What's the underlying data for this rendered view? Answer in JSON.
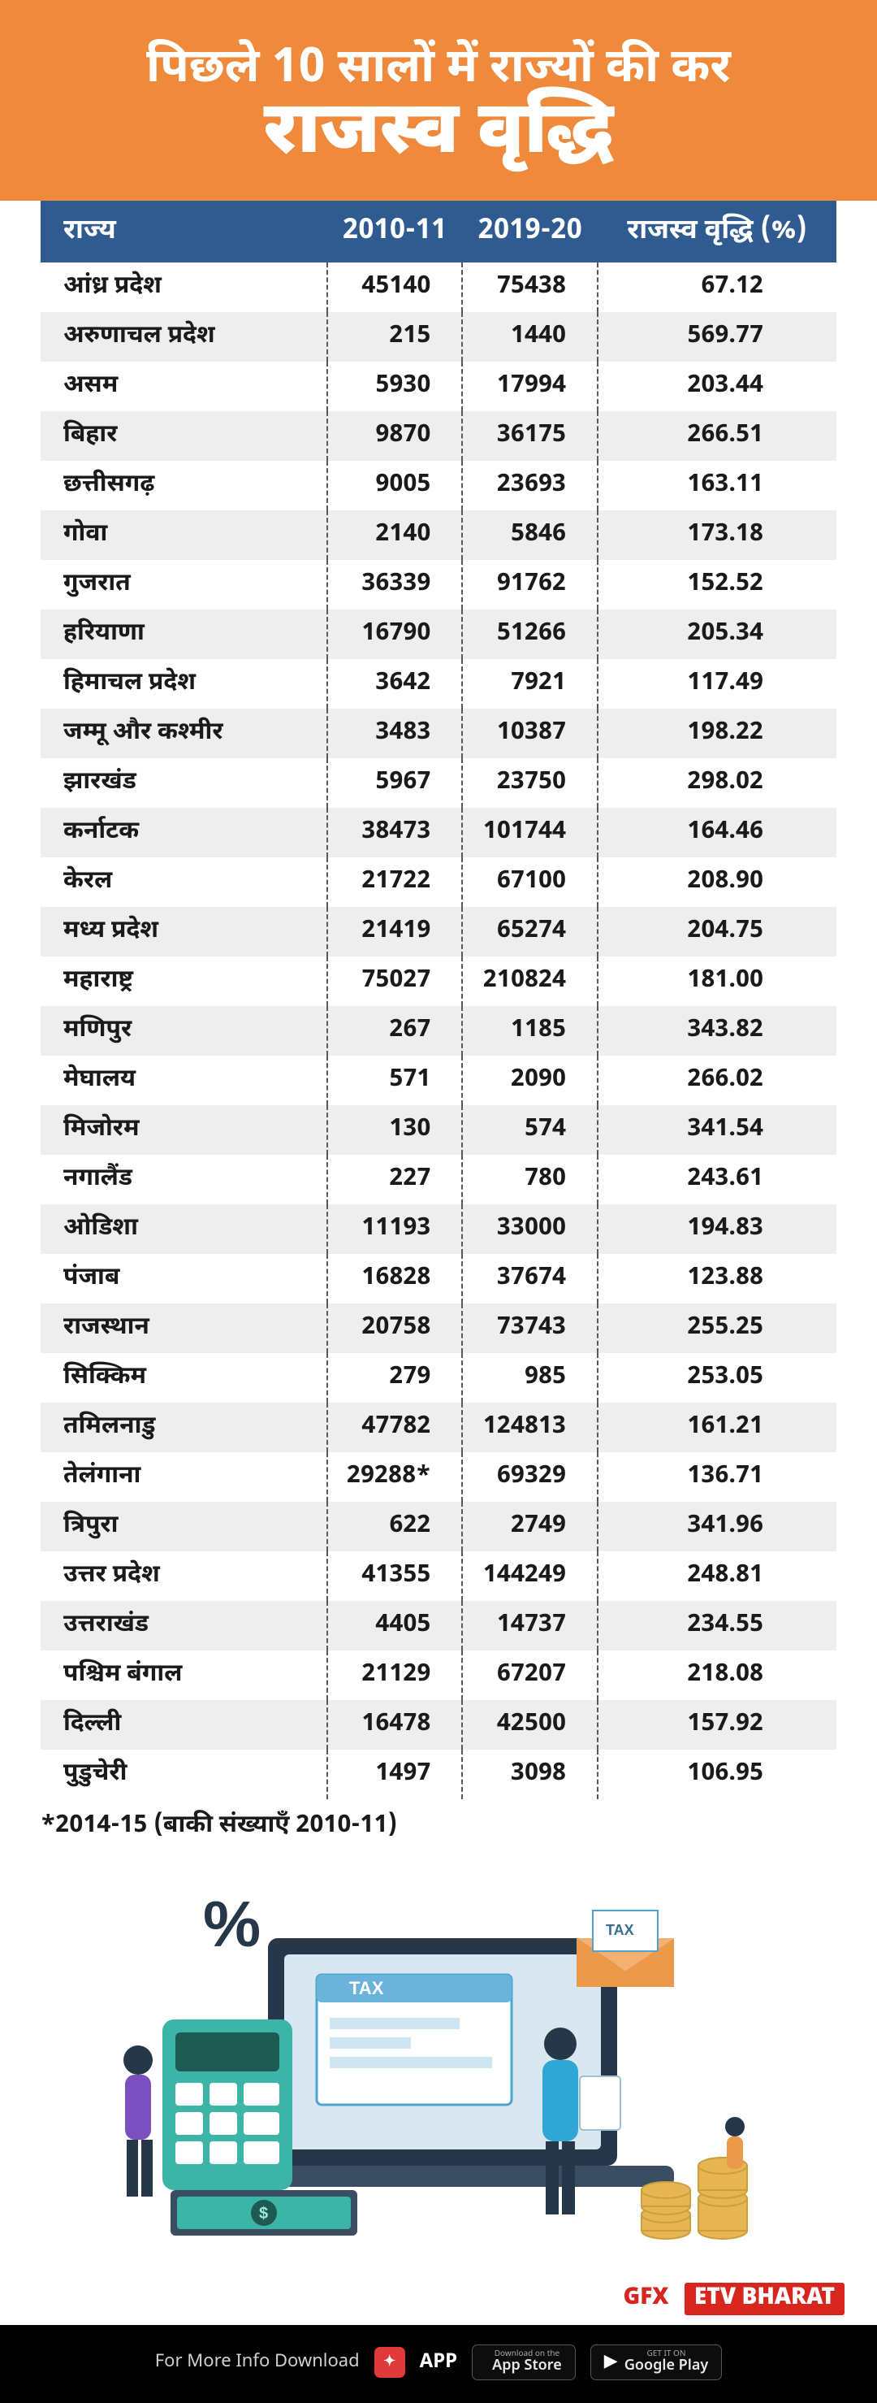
{
  "colors": {
    "header_bg": "#ef8a3c",
    "header_text": "#ffffff",
    "th_bg": "#2f5b90",
    "th_text": "#ffffff",
    "row_even_bg": "#ffffff",
    "row_odd_bg": "#eeeeee",
    "brand_red": "#d7261e",
    "black": "#000000"
  },
  "typography": {
    "title_line1_pt": 58,
    "title_line2_pt": 90,
    "th_pt": 34,
    "td_pt": 30,
    "footnote_pt": 30
  },
  "header": {
    "line1": "पिछले 10 सालों में राज्यों की कर",
    "line2": "राजस्व वृद्धि"
  },
  "table": {
    "columns": [
      "राज्य",
      "2010-11",
      "2019-20",
      "राजस्व वृद्धि (%)"
    ],
    "rows": [
      [
        "आंध्र प्रदेश",
        "45140",
        "75438",
        "67.12"
      ],
      [
        "अरुणाचल प्रदेश",
        "215",
        "1440",
        "569.77"
      ],
      [
        "असम",
        "5930",
        "17994",
        "203.44"
      ],
      [
        "बिहार",
        "9870",
        "36175",
        "266.51"
      ],
      [
        "छत्तीसगढ़",
        "9005",
        "23693",
        "163.11"
      ],
      [
        "गोवा",
        "2140",
        "5846",
        "173.18"
      ],
      [
        "गुजरात",
        "36339",
        "91762",
        "152.52"
      ],
      [
        "हरियाणा",
        "16790",
        "51266",
        "205.34"
      ],
      [
        "हिमाचल प्रदेश",
        "3642",
        "7921",
        "117.49"
      ],
      [
        "जम्मू और कश्मीर",
        "3483",
        "10387",
        "198.22"
      ],
      [
        "झारखंड",
        "5967",
        "23750",
        "298.02"
      ],
      [
        "कर्नाटक",
        "38473",
        "101744",
        "164.46"
      ],
      [
        "केरल",
        "21722",
        "67100",
        "208.90"
      ],
      [
        "मध्य प्रदेश",
        "21419",
        "65274",
        "204.75"
      ],
      [
        "महाराष्ट्र",
        "75027",
        "210824",
        "181.00"
      ],
      [
        "मणिपुर",
        "267",
        "1185",
        "343.82"
      ],
      [
        "मेघालय",
        "571",
        "2090",
        "266.02"
      ],
      [
        "मिजोरम",
        "130",
        "574",
        "341.54"
      ],
      [
        "नगालैंड",
        "227",
        "780",
        "243.61"
      ],
      [
        "ओडिशा",
        "11193",
        "33000",
        "194.83"
      ],
      [
        "पंजाब",
        "16828",
        "37674",
        "123.88"
      ],
      [
        "राजस्थान",
        "20758",
        "73743",
        "255.25"
      ],
      [
        "सिक्किम",
        "279",
        "985",
        "253.05"
      ],
      [
        "तमिलनाडु",
        "47782",
        "124813",
        "161.21"
      ],
      [
        "तेलंगाना",
        "29288*",
        "69329",
        "136.71"
      ],
      [
        "त्रिपुरा",
        "622",
        "2749",
        "341.96"
      ],
      [
        "उत्तर प्रदेश",
        "41355",
        "144249",
        "248.81"
      ],
      [
        "उत्तराखंड",
        "4405",
        "14737",
        "234.55"
      ],
      [
        "पश्चिम बंगाल",
        "21129",
        "67207",
        "218.08"
      ],
      [
        "दिल्ली",
        "16478",
        "42500",
        "157.92"
      ],
      [
        "पुडुचेरी",
        "1497",
        "3098",
        "106.95"
      ]
    ]
  },
  "footnote": "*2014-15 (बाकी संख्याएँ 2010-11)",
  "brand": {
    "gfx": "GFX",
    "etv": "ETV BHARAT"
  },
  "footer": {
    "text": "For More Info Download",
    "app_label": "APP",
    "apple": {
      "tiny": "Download on the",
      "big": "App Store"
    },
    "google": {
      "tiny": "GET IT ON",
      "big": "Google Play"
    }
  }
}
